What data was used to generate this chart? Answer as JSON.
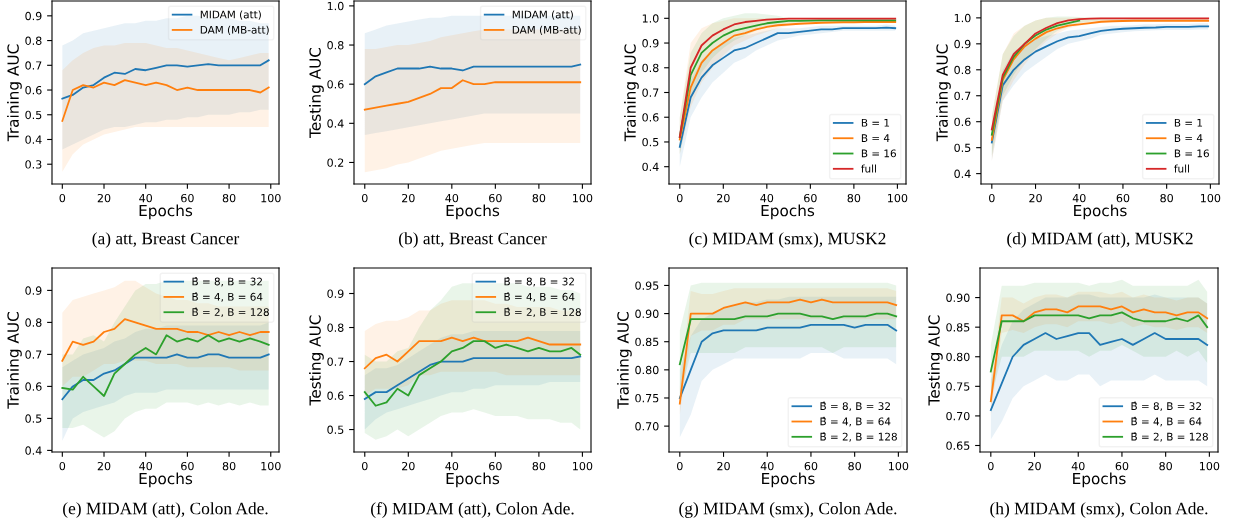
{
  "chart_data": [
    {
      "type": "line",
      "xlabel": "Epochs",
      "ylabel": "Training AUC",
      "annotations": [
        "(a) att, Breast Cancer"
      ],
      "legend": "top right",
      "grid": false,
      "xlim": [
        -4.95,
        103.95
      ],
      "xticks": [
        0,
        20,
        40,
        60,
        80,
        100
      ],
      "ylim": [
        0.22,
        0.96
      ],
      "yticks": [
        0.3,
        0.4,
        0.5,
        0.6,
        0.7,
        0.8,
        0.9
      ],
      "x": [
        0,
        5,
        10,
        15,
        20,
        25,
        30,
        35,
        40,
        45,
        50,
        55,
        60,
        65,
        70,
        75,
        80,
        85,
        90,
        95,
        99
      ],
      "series": [
        {
          "name": "MIDAM (att)",
          "color": "#1f77b4",
          "values": [
            0.565,
            0.58,
            0.61,
            0.62,
            0.65,
            0.67,
            0.665,
            0.685,
            0.68,
            0.69,
            0.7,
            0.7,
            0.695,
            0.7,
            0.705,
            0.7,
            0.7,
            0.7,
            0.7,
            0.7,
            0.72
          ],
          "lower": [
            0.36,
            0.38,
            0.4,
            0.42,
            0.44,
            0.45,
            0.45,
            0.46,
            0.47,
            0.47,
            0.48,
            0.48,
            0.49,
            0.49,
            0.5,
            0.5,
            0.5,
            0.51,
            0.51,
            0.52,
            0.52
          ],
          "upper": [
            0.78,
            0.8,
            0.83,
            0.84,
            0.85,
            0.86,
            0.87,
            0.87,
            0.88,
            0.88,
            0.89,
            0.89,
            0.9,
            0.9,
            0.89,
            0.89,
            0.89,
            0.88,
            0.88,
            0.87,
            0.87
          ]
        },
        {
          "name": "DAM (MB-att)",
          "color": "#ff7f0e",
          "values": [
            0.475,
            0.6,
            0.62,
            0.61,
            0.63,
            0.62,
            0.64,
            0.63,
            0.62,
            0.63,
            0.62,
            0.6,
            0.61,
            0.6,
            0.6,
            0.6,
            0.6,
            0.6,
            0.6,
            0.59,
            0.61
          ],
          "lower": [
            0.27,
            0.34,
            0.38,
            0.4,
            0.42,
            0.43,
            0.44,
            0.45,
            0.45,
            0.45,
            0.45,
            0.45,
            0.45,
            0.45,
            0.45,
            0.45,
            0.45,
            0.45,
            0.45,
            0.45,
            0.45
          ],
          "upper": [
            0.68,
            0.72,
            0.75,
            0.77,
            0.78,
            0.78,
            0.79,
            0.79,
            0.79,
            0.78,
            0.77,
            0.77,
            0.76,
            0.75,
            0.74,
            0.73,
            0.72,
            0.73,
            0.74,
            0.75,
            0.75
          ]
        }
      ]
    },
    {
      "type": "line",
      "xlabel": "Epochs",
      "ylabel": "Testing AUC",
      "annotations": [
        "(b) att, Breast Cancer"
      ],
      "legend": "top right",
      "grid": false,
      "xlim": [
        -4.95,
        103.95
      ],
      "xticks": [
        0,
        20,
        40,
        60,
        80,
        100
      ],
      "ylim": [
        0.09,
        1.025
      ],
      "yticks": [
        0.2,
        0.4,
        0.6,
        0.8,
        {
          "value": 1,
          "label": "1.0"
        }
      ],
      "x": [
        0,
        5,
        10,
        15,
        20,
        25,
        30,
        35,
        40,
        45,
        50,
        55,
        60,
        65,
        70,
        75,
        80,
        85,
        90,
        95,
        99
      ],
      "series": [
        {
          "name": "MIDAM (att)",
          "color": "#1f77b4",
          "values": [
            0.6,
            0.64,
            0.66,
            0.68,
            0.68,
            0.68,
            0.69,
            0.68,
            0.68,
            0.67,
            0.69,
            0.69,
            0.69,
            0.69,
            0.69,
            0.69,
            0.69,
            0.69,
            0.69,
            0.69,
            0.7
          ],
          "lower": [
            0.34,
            0.35,
            0.36,
            0.37,
            0.38,
            0.39,
            0.4,
            0.41,
            0.42,
            0.43,
            0.44,
            0.45,
            0.45,
            0.45,
            0.45,
            0.45,
            0.45,
            0.45,
            0.45,
            0.45,
            0.45
          ],
          "upper": [
            0.86,
            0.88,
            0.9,
            0.91,
            0.92,
            0.93,
            0.94,
            0.94,
            0.95,
            0.95,
            0.95,
            0.95,
            0.95,
            0.95,
            0.95,
            0.95,
            0.95,
            0.95,
            0.95,
            0.95,
            0.95
          ]
        },
        {
          "name": "DAM (MB-att)",
          "color": "#ff7f0e",
          "values": [
            0.47,
            0.48,
            0.49,
            0.5,
            0.51,
            0.53,
            0.55,
            0.58,
            0.58,
            0.62,
            0.6,
            0.6,
            0.61,
            0.61,
            0.61,
            0.61,
            0.61,
            0.61,
            0.61,
            0.61,
            0.61
          ],
          "lower": [
            0.15,
            0.16,
            0.17,
            0.19,
            0.2,
            0.22,
            0.24,
            0.26,
            0.27,
            0.28,
            0.29,
            0.3,
            0.3,
            0.3,
            0.3,
            0.3,
            0.3,
            0.3,
            0.3,
            0.3,
            0.3
          ],
          "upper": [
            0.78,
            0.78,
            0.79,
            0.8,
            0.8,
            0.81,
            0.82,
            0.84,
            0.85,
            0.86,
            0.87,
            0.88,
            0.88,
            0.88,
            0.88,
            0.88,
            0.88,
            0.88,
            0.88,
            0.88,
            0.88
          ]
        }
      ]
    },
    {
      "type": "line",
      "xlabel": "Epochs",
      "ylabel": "Training AUC",
      "annotations": [
        "(c) MIDAM (smx), MUSK2"
      ],
      "legend": "bottom right",
      "grid": false,
      "xlim": [
        -4.95,
        103.95
      ],
      "xticks": [
        0,
        20,
        40,
        60,
        80,
        100
      ],
      "ylim": [
        0.33,
        1.07
      ],
      "yticks": [
        0.4,
        0.5,
        0.6,
        0.7,
        0.8,
        0.9,
        {
          "value": 1,
          "label": "1.0"
        }
      ],
      "x": [
        0,
        5,
        10,
        15,
        20,
        25,
        30,
        35,
        40,
        45,
        50,
        55,
        60,
        65,
        70,
        75,
        80,
        85,
        90,
        95,
        99
      ],
      "series": [
        {
          "name": "B = 1",
          "color": "#1f77b4",
          "values": [
            0.48,
            0.68,
            0.76,
            0.81,
            0.84,
            0.87,
            0.88,
            0.9,
            0.92,
            0.94,
            0.94,
            0.945,
            0.95,
            0.955,
            0.955,
            0.96,
            0.96,
            0.96,
            0.96,
            0.962,
            0.96
          ],
          "lower": [
            0.4,
            0.6,
            0.68,
            0.74,
            0.78,
            0.82,
            0.84,
            0.87,
            0.89,
            0.91,
            0.92,
            0.93,
            0.935,
            0.94,
            0.945,
            0.95,
            0.95,
            0.95,
            0.95,
            0.95,
            0.95
          ],
          "upper": [
            0.55,
            0.75,
            0.83,
            0.87,
            0.9,
            0.92,
            0.93,
            0.94,
            0.95,
            0.96,
            0.96,
            0.96,
            0.965,
            0.97,
            0.97,
            0.97,
            0.97,
            0.97,
            0.97,
            0.975,
            0.97
          ]
        },
        {
          "name": "B = 4",
          "color": "#ff7f0e",
          "values": [
            0.51,
            0.72,
            0.82,
            0.87,
            0.9,
            0.93,
            0.94,
            0.955,
            0.965,
            0.972,
            0.975,
            0.978,
            0.98,
            0.982,
            0.983,
            0.984,
            0.984,
            0.985,
            0.985,
            0.985,
            0.985
          ],
          "lower": [
            0.45,
            0.64,
            0.74,
            0.8,
            0.85,
            0.89,
            0.91,
            0.93,
            0.945,
            0.96,
            0.97,
            0.975,
            0.98,
            0.98,
            0.982,
            0.983,
            0.983,
            0.983,
            0.983,
            0.983,
            0.983
          ],
          "upper": [
            0.6,
            0.9,
            0.96,
            0.98,
            0.99,
            1.0,
            1.0,
            1.0,
            1.0,
            1.0,
            0.995,
            0.995,
            0.993,
            0.993,
            0.993,
            0.993,
            0.993,
            0.993,
            0.993,
            0.993,
            0.993
          ]
        },
        {
          "name": "B = 16",
          "color": "#2ca02c",
          "values": [
            0.52,
            0.77,
            0.86,
            0.9,
            0.93,
            0.95,
            0.96,
            0.97,
            0.98,
            0.985,
            0.99,
            0.99,
            0.991,
            0.992,
            0.992,
            0.992,
            0.992,
            0.992,
            0.992,
            0.992,
            0.992
          ],
          "lower": [
            0.45,
            0.68,
            0.78,
            0.84,
            0.88,
            0.91,
            0.93,
            0.95,
            0.965,
            0.975,
            0.98,
            0.983,
            0.985,
            0.985,
            0.985,
            0.985,
            0.985,
            0.985,
            0.985,
            0.985,
            0.985
          ],
          "upper": [
            0.6,
            0.86,
            0.94,
            0.98,
            1.0,
            1.01,
            1.02,
            1.02,
            1.015,
            1.01,
            1.0,
            0.997,
            0.995,
            0.995,
            0.995,
            0.995,
            0.995,
            0.995,
            0.995,
            0.995,
            0.995
          ]
        },
        {
          "name": "full",
          "color": "#d62728",
          "values": [
            0.52,
            0.8,
            0.89,
            0.93,
            0.955,
            0.975,
            0.985,
            0.99,
            0.995,
            0.997,
            0.999,
            0.999,
            0.999,
            0.999,
            0.999,
            0.999,
            0.999,
            0.999,
            0.999,
            0.999,
            0.999
          ]
        }
      ]
    },
    {
      "type": "line",
      "xlabel": "Epochs",
      "ylabel": "Training AUC",
      "annotations": [
        "(d) MIDAM (att), MUSK2"
      ],
      "legend": "bottom right",
      "grid": false,
      "xlim": [
        -4.95,
        103.95
      ],
      "xticks": [
        0,
        20,
        40,
        60,
        80,
        100
      ],
      "ylim": [
        0.36,
        1.065
      ],
      "yticks": [
        0.4,
        0.5,
        0.6,
        0.7,
        0.8,
        0.9,
        {
          "value": 1,
          "label": "1.0"
        }
      ],
      "x": [
        0,
        5,
        10,
        15,
        20,
        25,
        30,
        35,
        40,
        45,
        50,
        55,
        60,
        65,
        70,
        75,
        80,
        85,
        90,
        95,
        99
      ],
      "series": [
        {
          "name": "B = 1",
          "color": "#1f77b4",
          "values": [
            0.52,
            0.74,
            0.8,
            0.84,
            0.87,
            0.89,
            0.91,
            0.925,
            0.93,
            0.94,
            0.95,
            0.955,
            0.958,
            0.96,
            0.962,
            0.963,
            0.965,
            0.965,
            0.965,
            0.967,
            0.967
          ],
          "lower": [
            0.45,
            0.68,
            0.74,
            0.79,
            0.82,
            0.85,
            0.88,
            0.9,
            0.91,
            0.92,
            0.935,
            0.94,
            0.945,
            0.948,
            0.95,
            0.952,
            0.953,
            0.953,
            0.953,
            0.955,
            0.955
          ],
          "upper": [
            0.58,
            0.8,
            0.87,
            0.9,
            0.92,
            0.93,
            0.94,
            0.95,
            0.955,
            0.96,
            0.965,
            0.97,
            0.97,
            0.972,
            0.975,
            0.975,
            0.977,
            0.977,
            0.977,
            0.979,
            0.979
          ]
        },
        {
          "name": "B = 4",
          "color": "#ff7f0e",
          "values": [
            0.53,
            0.76,
            0.84,
            0.89,
            0.92,
            0.945,
            0.96,
            0.97,
            0.975,
            0.98,
            0.985,
            0.987,
            0.988,
            0.989,
            0.989,
            0.989,
            0.989,
            0.989,
            0.989,
            0.989,
            0.989
          ],
          "lower": [
            0.45,
            0.68,
            0.76,
            0.82,
            0.87,
            0.91,
            0.94,
            0.96,
            0.97,
            0.975,
            0.98,
            0.982,
            0.985,
            0.986,
            0.986,
            0.986,
            0.986,
            0.986,
            0.986,
            0.986,
            0.986
          ],
          "upper": [
            0.62,
            0.86,
            0.94,
            0.97,
            0.99,
            1.0,
            1.0,
            1.0,
            1.0,
            1.0,
            1.0,
            0.998,
            0.998,
            0.998,
            0.998,
            0.998,
            0.998,
            0.998,
            0.998,
            0.998,
            0.998
          ]
        },
        {
          "name": "B = 16",
          "color": "#2ca02c",
          "values": [
            0.55,
            0.77,
            0.85,
            0.9,
            0.932,
            0.955,
            0.97,
            0.98,
            0.99,
            null,
            null,
            null,
            null,
            null,
            null,
            null,
            null,
            null,
            null,
            null,
            null
          ],
          "lower": [
            0.47,
            0.7,
            0.78,
            0.84,
            0.88,
            0.92,
            0.95,
            0.965,
            0.98,
            0.985,
            0.99,
            0.99,
            0.99,
            0.99,
            0.99,
            0.99,
            0.99,
            0.99,
            0.99,
            0.99,
            0.99
          ],
          "upper": [
            0.62,
            0.86,
            0.93,
            0.97,
            0.99,
            1.0,
            1.005,
            1.005,
            1.003,
            1.0,
            1.0,
            1.0,
            1.0,
            1.0,
            1.0,
            1.0,
            1.0,
            1.0,
            1.0,
            1.0,
            1.0
          ]
        },
        {
          "name": "full",
          "color": "#d62728",
          "values": [
            0.57,
            0.78,
            0.86,
            0.9,
            0.94,
            0.962,
            0.98,
            0.99,
            0.995,
            0.997,
            0.998,
            0.998,
            0.998,
            0.998,
            0.998,
            0.998,
            0.998,
            0.998,
            0.998,
            0.998,
            0.998
          ]
        }
      ]
    },
    {
      "type": "line",
      "xlabel": "Epochs",
      "ylabel": "Training AUC",
      "annotations": [
        "(e) MIDAM (att), Colon Ade."
      ],
      "legend": "top right",
      "grid": false,
      "xlim": [
        -4.95,
        103.95
      ],
      "xticks": [
        0,
        20,
        40,
        60,
        80,
        100
      ],
      "ylim": [
        0.395,
        0.97
      ],
      "yticks": [
        0.4,
        0.5,
        0.6,
        0.7,
        0.8,
        0.9
      ],
      "x": [
        0,
        5,
        10,
        15,
        20,
        25,
        30,
        35,
        40,
        45,
        50,
        55,
        60,
        65,
        70,
        75,
        80,
        85,
        90,
        95,
        99
      ],
      "series": [
        {
          "name": "B̂ = 8, B = 32",
          "color": "#1f77b4",
          "values": [
            0.56,
            0.6,
            0.62,
            0.62,
            0.64,
            0.65,
            0.67,
            0.69,
            0.69,
            0.69,
            0.69,
            0.7,
            0.69,
            0.69,
            0.7,
            0.7,
            0.69,
            0.69,
            0.69,
            0.69,
            0.7
          ],
          "lower": [
            0.43,
            0.5,
            0.52,
            0.53,
            0.54,
            0.55,
            0.57,
            0.58,
            0.58,
            0.58,
            0.59,
            0.59,
            0.59,
            0.59,
            0.59,
            0.59,
            0.59,
            0.59,
            0.59,
            0.59,
            0.59
          ],
          "upper": [
            0.66,
            0.68,
            0.7,
            0.71,
            0.72,
            0.74,
            0.75,
            0.77,
            0.78,
            0.78,
            0.79,
            0.79,
            0.79,
            0.79,
            0.79,
            0.79,
            0.79,
            0.79,
            0.79,
            0.79,
            0.8
          ]
        },
        {
          "name": "B̂ = 4, B = 64",
          "color": "#ff7f0e",
          "values": [
            0.68,
            0.74,
            0.73,
            0.74,
            0.77,
            0.78,
            0.81,
            0.8,
            0.79,
            0.78,
            0.78,
            0.78,
            0.77,
            0.77,
            0.76,
            0.77,
            0.76,
            0.77,
            0.76,
            0.77,
            0.77
          ],
          "lower": [
            0.6,
            0.63,
            0.63,
            0.65,
            0.67,
            0.67,
            0.68,
            0.68,
            0.68,
            0.67,
            0.67,
            0.67,
            0.66,
            0.66,
            0.66,
            0.66,
            0.66,
            0.65,
            0.65,
            0.65,
            0.65
          ],
          "upper": [
            0.83,
            0.87,
            0.88,
            0.89,
            0.9,
            0.91,
            0.93,
            0.93,
            0.91,
            0.89,
            0.88,
            0.87,
            0.87,
            0.86,
            0.86,
            0.85,
            0.85,
            0.85,
            0.85,
            0.85,
            0.85
          ]
        },
        {
          "name": "B̂ = 2, B = 128",
          "color": "#2ca02c",
          "values": [
            0.595,
            0.59,
            0.63,
            0.6,
            0.57,
            0.64,
            0.67,
            0.7,
            0.72,
            0.7,
            0.76,
            0.74,
            0.75,
            0.74,
            0.76,
            0.74,
            0.75,
            0.74,
            0.75,
            0.74,
            0.73
          ],
          "lower": [
            0.47,
            0.47,
            0.48,
            0.46,
            0.44,
            0.46,
            0.5,
            0.52,
            0.53,
            0.53,
            0.55,
            0.55,
            0.55,
            0.54,
            0.55,
            0.54,
            0.55,
            0.54,
            0.55,
            0.54,
            0.54
          ],
          "upper": [
            0.7,
            0.7,
            0.75,
            0.76,
            0.74,
            0.8,
            0.85,
            0.9,
            0.92,
            0.92,
            0.93,
            0.93,
            0.93,
            0.93,
            0.93,
            0.93,
            0.93,
            0.93,
            0.93,
            0.93,
            0.93
          ]
        }
      ]
    },
    {
      "type": "line",
      "xlabel": "Epochs",
      "ylabel": "Testing AUC",
      "annotations": [
        "(f) MIDAM (att), Colon Ade."
      ],
      "legend": "top right",
      "grid": false,
      "xlim": [
        -4.95,
        103.95
      ],
      "xticks": [
        0,
        20,
        40,
        60,
        80,
        100
      ],
      "ylim": [
        0.434,
        0.975
      ],
      "yticks": [
        0.5,
        0.6,
        0.7,
        0.8,
        0.9
      ],
      "x": [
        0,
        5,
        10,
        15,
        20,
        25,
        30,
        35,
        40,
        45,
        50,
        55,
        60,
        65,
        70,
        75,
        80,
        85,
        90,
        95,
        99
      ],
      "series": [
        {
          "name": "B̂ = 8, B = 32",
          "color": "#1f77b4",
          "values": [
            0.59,
            0.61,
            0.61,
            0.63,
            0.65,
            0.67,
            0.69,
            0.7,
            0.7,
            0.7,
            0.71,
            0.71,
            0.71,
            0.71,
            0.71,
            0.71,
            0.71,
            0.71,
            0.71,
            0.71,
            0.715
          ],
          "lower": [
            0.5,
            0.53,
            0.55,
            0.56,
            0.57,
            0.58,
            0.59,
            0.6,
            0.61,
            0.61,
            0.62,
            0.62,
            0.63,
            0.63,
            0.63,
            0.63,
            0.63,
            0.64,
            0.64,
            0.64,
            0.64
          ],
          "upper": [
            0.66,
            0.68,
            0.68,
            0.69,
            0.71,
            0.73,
            0.75,
            0.77,
            0.78,
            0.78,
            0.79,
            0.79,
            0.79,
            0.79,
            0.79,
            0.79,
            0.79,
            0.79,
            0.79,
            0.79,
            0.79
          ]
        },
        {
          "name": "B̂ = 4, B = 64",
          "color": "#ff7f0e",
          "values": [
            0.68,
            0.71,
            0.72,
            0.7,
            0.73,
            0.76,
            0.76,
            0.76,
            0.77,
            0.76,
            0.77,
            0.76,
            0.76,
            0.76,
            0.76,
            0.77,
            0.76,
            0.75,
            0.75,
            0.75,
            0.75
          ],
          "lower": [
            0.6,
            0.62,
            0.62,
            0.62,
            0.63,
            0.66,
            0.66,
            0.67,
            0.67,
            0.67,
            0.67,
            0.67,
            0.67,
            0.66,
            0.66,
            0.66,
            0.66,
            0.66,
            0.66,
            0.66,
            0.66
          ],
          "upper": [
            0.79,
            0.81,
            0.82,
            0.82,
            0.83,
            0.85,
            0.85,
            0.87,
            0.88,
            0.88,
            0.88,
            0.88,
            0.87,
            0.87,
            0.86,
            0.86,
            0.86,
            0.86,
            0.85,
            0.85,
            0.85
          ]
        },
        {
          "name": "B̂ = 2, B = 128",
          "color": "#2ca02c",
          "values": [
            0.61,
            0.57,
            0.58,
            0.62,
            0.6,
            0.66,
            0.68,
            0.7,
            0.73,
            0.74,
            0.76,
            0.76,
            0.74,
            0.75,
            0.74,
            0.73,
            0.74,
            0.73,
            0.73,
            0.74,
            0.72
          ],
          "lower": [
            0.49,
            0.47,
            0.48,
            0.5,
            0.48,
            0.5,
            0.52,
            0.54,
            0.55,
            0.55,
            0.56,
            0.55,
            0.54,
            0.54,
            0.54,
            0.53,
            0.53,
            0.53,
            0.52,
            0.52,
            0.5
          ],
          "upper": [
            0.72,
            0.7,
            0.7,
            0.73,
            0.74,
            0.8,
            0.85,
            0.88,
            0.92,
            0.93,
            0.93,
            0.93,
            0.93,
            0.93,
            0.93,
            0.92,
            0.92,
            0.92,
            0.91,
            0.91,
            0.9
          ]
        }
      ]
    },
    {
      "type": "line",
      "xlabel": "Epochs",
      "ylabel": "Training AUC",
      "annotations": [
        "(g) MIDAM (smx), Colon Ade."
      ],
      "legend": "bottom right",
      "grid": false,
      "xlim": [
        -4.95,
        103.95
      ],
      "xticks": [
        0,
        20,
        40,
        60,
        80,
        100
      ],
      "ylim": [
        0.654,
        0.981
      ],
      "yticks": [
        {
          "value": 0.7,
          "label": "0.70"
        },
        {
          "value": 0.75,
          "label": "0.75"
        },
        {
          "value": 0.8,
          "label": "0.80"
        },
        {
          "value": 0.85,
          "label": "0.85"
        },
        {
          "value": 0.9,
          "label": "0.90"
        },
        {
          "value": 0.95,
          "label": "0.95"
        }
      ],
      "x": [
        0,
        5,
        10,
        15,
        20,
        25,
        30,
        35,
        40,
        45,
        50,
        55,
        60,
        65,
        70,
        75,
        80,
        85,
        90,
        95,
        99
      ],
      "series": [
        {
          "name": "B̂ = 8, B = 32",
          "color": "#1f77b4",
          "values": [
            0.75,
            0.8,
            0.85,
            0.865,
            0.87,
            0.87,
            0.87,
            0.87,
            0.875,
            0.875,
            0.875,
            0.875,
            0.88,
            0.88,
            0.88,
            0.88,
            0.875,
            0.88,
            0.88,
            0.88,
            0.87
          ],
          "lower": [
            0.68,
            0.72,
            0.78,
            0.8,
            0.81,
            0.82,
            0.82,
            0.82,
            0.82,
            0.82,
            0.82,
            0.82,
            0.83,
            0.83,
            0.83,
            0.82,
            0.82,
            0.82,
            0.82,
            0.82,
            0.81
          ],
          "upper": [
            0.8,
            0.86,
            0.89,
            0.9,
            0.91,
            0.915,
            0.92,
            0.92,
            0.925,
            0.925,
            0.93,
            0.93,
            0.93,
            0.93,
            0.93,
            0.93,
            0.93,
            0.93,
            0.93,
            0.93,
            0.93
          ]
        },
        {
          "name": "B̂ = 4, B = 64",
          "color": "#ff7f0e",
          "values": [
            0.74,
            0.9,
            0.9,
            0.9,
            0.91,
            0.915,
            0.92,
            0.915,
            0.92,
            0.92,
            0.92,
            0.925,
            0.92,
            0.925,
            0.92,
            0.92,
            0.92,
            0.92,
            0.92,
            0.92,
            0.915
          ],
          "lower": [
            0.72,
            0.86,
            0.87,
            0.87,
            0.88,
            0.88,
            0.89,
            0.89,
            0.89,
            0.89,
            0.89,
            0.89,
            0.89,
            0.89,
            0.89,
            0.89,
            0.89,
            0.89,
            0.89,
            0.89,
            0.89
          ],
          "upper": [
            0.77,
            0.94,
            0.935,
            0.935,
            0.94,
            0.945,
            0.945,
            0.945,
            0.945,
            0.945,
            0.945,
            0.945,
            0.945,
            0.945,
            0.945,
            0.945,
            0.945,
            0.945,
            0.945,
            0.945,
            0.94
          ]
        },
        {
          "name": "B̂ = 2, B = 128",
          "color": "#2ca02c",
          "values": [
            0.81,
            0.89,
            0.89,
            0.89,
            0.89,
            0.89,
            0.895,
            0.895,
            0.895,
            0.9,
            0.9,
            0.9,
            0.895,
            0.895,
            0.89,
            0.895,
            0.895,
            0.895,
            0.9,
            0.9,
            0.895
          ],
          "lower": [
            0.75,
            0.83,
            0.83,
            0.83,
            0.83,
            0.83,
            0.84,
            0.84,
            0.84,
            0.84,
            0.84,
            0.84,
            0.84,
            0.84,
            0.83,
            0.84,
            0.84,
            0.84,
            0.84,
            0.84,
            0.84
          ],
          "upper": [
            0.87,
            0.95,
            0.955,
            0.955,
            0.955,
            0.955,
            0.955,
            0.955,
            0.955,
            0.955,
            0.955,
            0.955,
            0.955,
            0.955,
            0.955,
            0.955,
            0.955,
            0.955,
            0.955,
            0.955,
            0.95
          ]
        }
      ]
    },
    {
      "type": "line",
      "xlabel": "Epochs",
      "ylabel": "Testing AUC",
      "annotations": [
        "(h) MIDAM (smx), Colon Ade."
      ],
      "legend": "bottom right",
      "grid": false,
      "xlim": [
        -4.95,
        103.95
      ],
      "xticks": [
        0,
        20,
        40,
        60,
        80,
        100
      ],
      "ylim": [
        0.639,
        0.95
      ],
      "yticks": [
        {
          "value": 0.65,
          "label": "0.65"
        },
        {
          "value": 0.7,
          "label": "0.70"
        },
        {
          "value": 0.75,
          "label": "0.75"
        },
        {
          "value": 0.8,
          "label": "0.80"
        },
        {
          "value": 0.85,
          "label": "0.85"
        },
        {
          "value": 0.9,
          "label": "0.90"
        }
      ],
      "x": [
        0,
        5,
        10,
        15,
        20,
        25,
        30,
        35,
        40,
        45,
        50,
        55,
        60,
        65,
        70,
        75,
        80,
        85,
        90,
        95,
        99
      ],
      "series": [
        {
          "name": "B̂ = 8, B = 32",
          "color": "#1f77b4",
          "values": [
            0.71,
            0.755,
            0.8,
            0.82,
            0.83,
            0.84,
            0.83,
            0.835,
            0.84,
            0.84,
            0.82,
            0.825,
            0.83,
            0.82,
            0.83,
            0.84,
            0.83,
            0.83,
            0.83,
            0.83,
            0.82
          ],
          "lower": [
            0.66,
            0.69,
            0.73,
            0.75,
            0.76,
            0.77,
            0.76,
            0.76,
            0.77,
            0.77,
            0.75,
            0.76,
            0.76,
            0.76,
            0.76,
            0.77,
            0.76,
            0.76,
            0.76,
            0.76,
            0.75
          ],
          "upper": [
            0.76,
            0.82,
            0.86,
            0.88,
            0.89,
            0.9,
            0.9,
            0.9,
            0.905,
            0.905,
            0.9,
            0.9,
            0.9,
            0.9,
            0.9,
            0.905,
            0.9,
            0.9,
            0.9,
            0.9,
            0.89
          ]
        },
        {
          "name": "B̂ = 4, B = 64",
          "color": "#ff7f0e",
          "values": [
            0.725,
            0.87,
            0.87,
            0.86,
            0.875,
            0.88,
            0.88,
            0.875,
            0.885,
            0.885,
            0.885,
            0.88,
            0.885,
            0.875,
            0.88,
            0.875,
            0.875,
            0.87,
            0.875,
            0.875,
            0.865
          ],
          "lower": [
            0.7,
            0.84,
            0.845,
            0.84,
            0.85,
            0.855,
            0.855,
            0.85,
            0.86,
            0.86,
            0.86,
            0.855,
            0.86,
            0.85,
            0.855,
            0.85,
            0.85,
            0.845,
            0.85,
            0.85,
            0.84
          ],
          "upper": [
            0.75,
            0.9,
            0.9,
            0.89,
            0.9,
            0.905,
            0.905,
            0.9,
            0.91,
            0.91,
            0.91,
            0.905,
            0.91,
            0.9,
            0.905,
            0.9,
            0.9,
            0.895,
            0.9,
            0.9,
            0.89
          ]
        },
        {
          "name": "B̂ = 2, B = 128",
          "color": "#2ca02c",
          "values": [
            0.775,
            0.86,
            0.86,
            0.86,
            0.87,
            0.87,
            0.87,
            0.87,
            0.87,
            0.865,
            0.87,
            0.87,
            0.875,
            0.865,
            0.86,
            0.86,
            0.86,
            0.865,
            0.86,
            0.87,
            0.85
          ],
          "lower": [
            0.73,
            0.8,
            0.8,
            0.8,
            0.81,
            0.81,
            0.81,
            0.81,
            0.81,
            0.8,
            0.81,
            0.81,
            0.82,
            0.81,
            0.8,
            0.8,
            0.8,
            0.81,
            0.8,
            0.81,
            0.79
          ],
          "upper": [
            0.82,
            0.92,
            0.92,
            0.92,
            0.925,
            0.925,
            0.925,
            0.925,
            0.925,
            0.92,
            0.925,
            0.925,
            0.93,
            0.92,
            0.92,
            0.92,
            0.92,
            0.92,
            0.92,
            0.93,
            0.91
          ]
        }
      ]
    }
  ]
}
